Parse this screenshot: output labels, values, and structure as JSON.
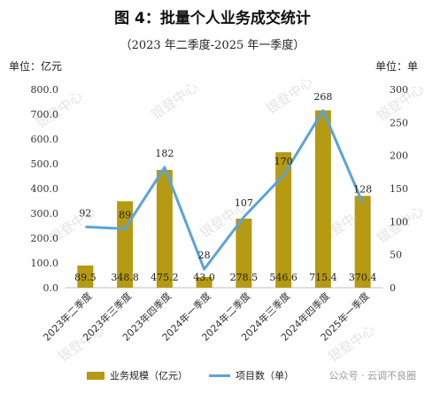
{
  "title": "图 4：批量个人业务成交统计",
  "subtitle": "（2023 年二季度-2025 年一季度）",
  "left_unit": "单位：亿元",
  "right_unit": "单位：单",
  "watermark": "银登中心",
  "credit": "公众号 · 云调不良圈",
  "colors": {
    "bar": "#B59A12",
    "line": "#5BA3D9"
  },
  "chart_data": {
    "type": "bar+line",
    "categories": [
      "2023年二季度",
      "2023年三季度",
      "2023年四季度",
      "2024年一季度",
      "2024年二季度",
      "2024年三季度",
      "2024年四季度",
      "2025年一季度"
    ],
    "series": [
      {
        "name": "业务规模（亿元）",
        "type": "bar",
        "axis": "left",
        "values": [
          89.5,
          348.8,
          475.2,
          43.0,
          278.5,
          546.6,
          715.4,
          370.4
        ],
        "labels": [
          "89.5",
          "348.8",
          "475.2",
          "43.0",
          "278.5",
          "546.6",
          "715.4",
          "370.4"
        ]
      },
      {
        "name": "项目数（单）",
        "type": "line",
        "axis": "right",
        "values": [
          92,
          89,
          182,
          28,
          107,
          170,
          268,
          128
        ]
      }
    ],
    "y_left": {
      "min": 0,
      "max": 800,
      "ticks": [
        "0.0",
        "100.0",
        "200.0",
        "300.0",
        "400.0",
        "500.0",
        "600.0",
        "700.0",
        "800.0"
      ]
    },
    "y_right": {
      "min": 0,
      "max": 300,
      "ticks": [
        "0",
        "50",
        "100",
        "150",
        "200",
        "250",
        "300"
      ]
    },
    "grid": false,
    "legend_position": "bottom"
  }
}
